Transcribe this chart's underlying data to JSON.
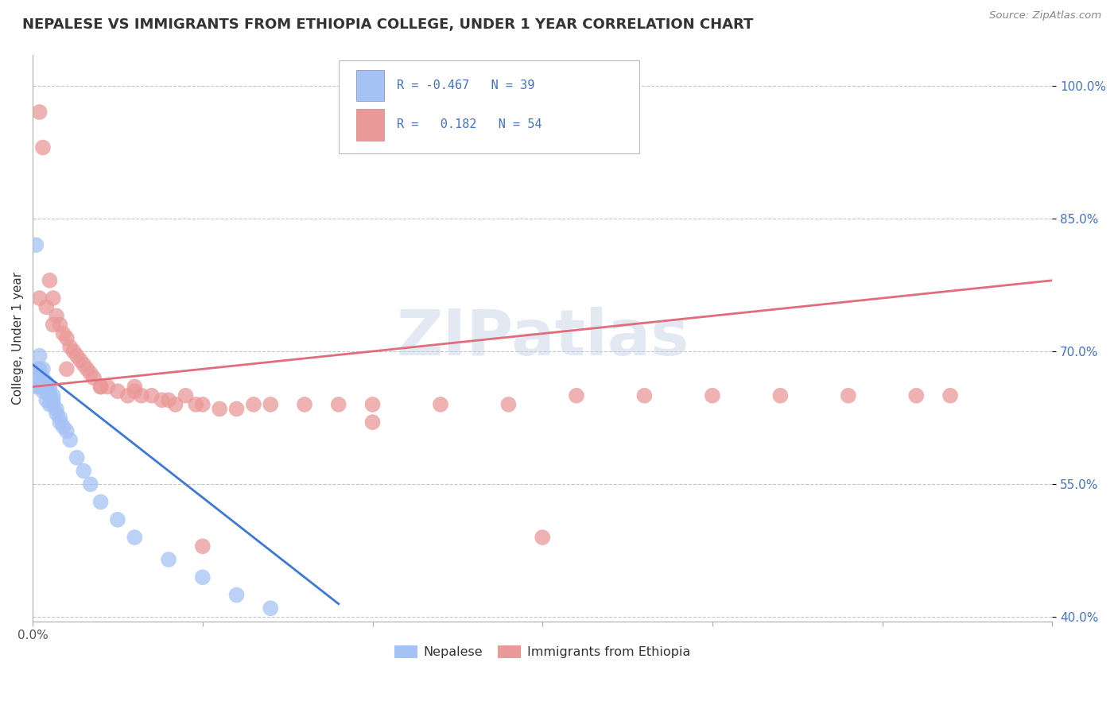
{
  "title": "NEPALESE VS IMMIGRANTS FROM ETHIOPIA COLLEGE, UNDER 1 YEAR CORRELATION CHART",
  "source_text": "Source: ZipAtlas.com",
  "ylabel": "College, Under 1 year",
  "watermark": "ZIPatlas",
  "blue_R": -0.467,
  "blue_N": 39,
  "pink_R": 0.182,
  "pink_N": 54,
  "blue_label": "Nepalese",
  "pink_label": "Immigrants from Ethiopia",
  "blue_color": "#a4c2f4",
  "pink_color": "#ea9999",
  "blue_line_color": "#3c78d8",
  "pink_line_color": "#e06c7c",
  "xlim_pct": [
    0.0,
    0.3
  ],
  "ylim_pct": [
    0.395,
    1.035
  ],
  "ytick_vals": [
    0.4,
    0.55,
    0.7,
    0.85,
    1.0
  ],
  "ytick_labels": [
    "40.0%",
    "55.0%",
    "70.0%",
    "85.0%",
    "100.0%"
  ],
  "background_color": "#ffffff",
  "grid_color": "#c0c0c0",
  "blue_x": [
    0.001,
    0.001,
    0.001,
    0.002,
    0.002,
    0.002,
    0.003,
    0.003,
    0.003,
    0.003,
    0.004,
    0.004,
    0.004,
    0.005,
    0.005,
    0.005,
    0.005,
    0.006,
    0.006,
    0.006,
    0.007,
    0.007,
    0.008,
    0.008,
    0.009,
    0.01,
    0.011,
    0.013,
    0.015,
    0.017,
    0.02,
    0.025,
    0.03,
    0.04,
    0.05,
    0.06,
    0.07,
    0.001,
    0.002
  ],
  "blue_y": [
    0.82,
    0.68,
    0.665,
    0.695,
    0.675,
    0.66,
    0.68,
    0.67,
    0.66,
    0.655,
    0.665,
    0.655,
    0.645,
    0.66,
    0.655,
    0.65,
    0.64,
    0.65,
    0.645,
    0.64,
    0.635,
    0.63,
    0.625,
    0.62,
    0.615,
    0.61,
    0.6,
    0.58,
    0.565,
    0.55,
    0.53,
    0.51,
    0.49,
    0.465,
    0.445,
    0.425,
    0.41,
    0.66,
    0.68
  ],
  "pink_x": [
    0.002,
    0.003,
    0.005,
    0.006,
    0.007,
    0.008,
    0.009,
    0.01,
    0.011,
    0.012,
    0.013,
    0.014,
    0.015,
    0.016,
    0.017,
    0.018,
    0.02,
    0.022,
    0.025,
    0.028,
    0.03,
    0.032,
    0.035,
    0.038,
    0.04,
    0.042,
    0.045,
    0.048,
    0.05,
    0.055,
    0.06,
    0.065,
    0.07,
    0.08,
    0.09,
    0.1,
    0.12,
    0.14,
    0.16,
    0.18,
    0.2,
    0.22,
    0.24,
    0.26,
    0.27,
    0.002,
    0.004,
    0.006,
    0.01,
    0.02,
    0.03,
    0.05,
    0.1,
    0.15
  ],
  "pink_y": [
    0.97,
    0.93,
    0.78,
    0.76,
    0.74,
    0.73,
    0.72,
    0.715,
    0.705,
    0.7,
    0.695,
    0.69,
    0.685,
    0.68,
    0.675,
    0.67,
    0.66,
    0.66,
    0.655,
    0.65,
    0.655,
    0.65,
    0.65,
    0.645,
    0.645,
    0.64,
    0.65,
    0.64,
    0.64,
    0.635,
    0.635,
    0.64,
    0.64,
    0.64,
    0.64,
    0.64,
    0.64,
    0.64,
    0.65,
    0.65,
    0.65,
    0.65,
    0.65,
    0.65,
    0.65,
    0.76,
    0.75,
    0.73,
    0.68,
    0.66,
    0.66,
    0.48,
    0.62,
    0.49
  ],
  "blue_line_x": [
    0.0,
    0.09
  ],
  "blue_line_y": [
    0.685,
    0.415
  ],
  "pink_line_x": [
    0.0,
    0.3
  ],
  "pink_line_y": [
    0.66,
    0.78
  ]
}
